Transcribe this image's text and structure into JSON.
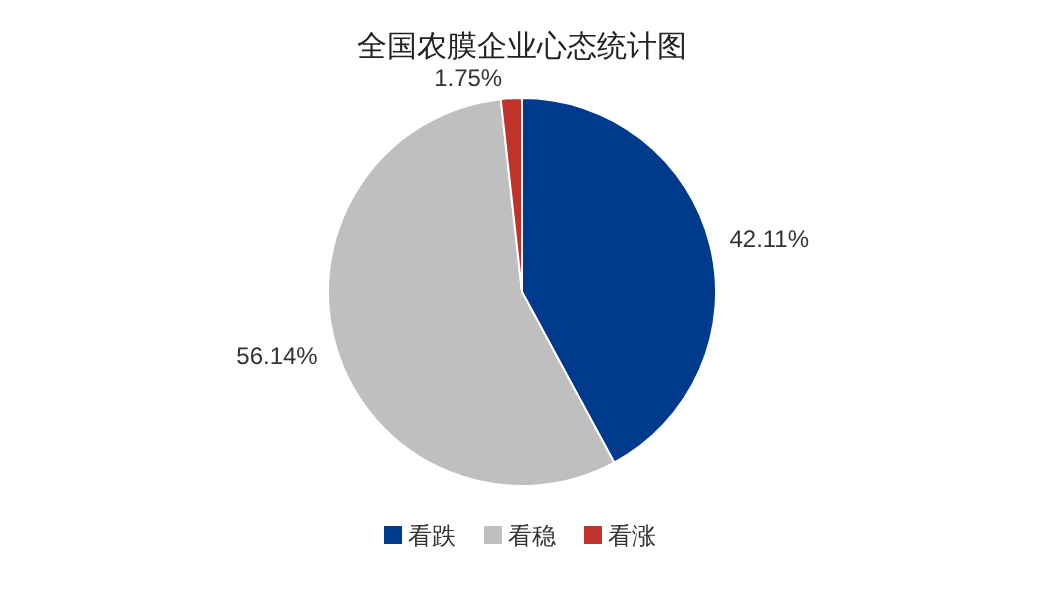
{
  "chart_data": {
    "type": "pie",
    "title": "全国农膜企业心态统计图",
    "categories": [
      "看跌",
      "看稳",
      "看涨"
    ],
    "values": [
      42.11,
      56.14,
      1.75
    ],
    "colors": [
      "#003a8c",
      "#bfbfbf",
      "#c0322b"
    ],
    "value_labels": [
      "42.11%",
      "56.14%",
      "1.75%"
    ],
    "legend": "bottom"
  }
}
